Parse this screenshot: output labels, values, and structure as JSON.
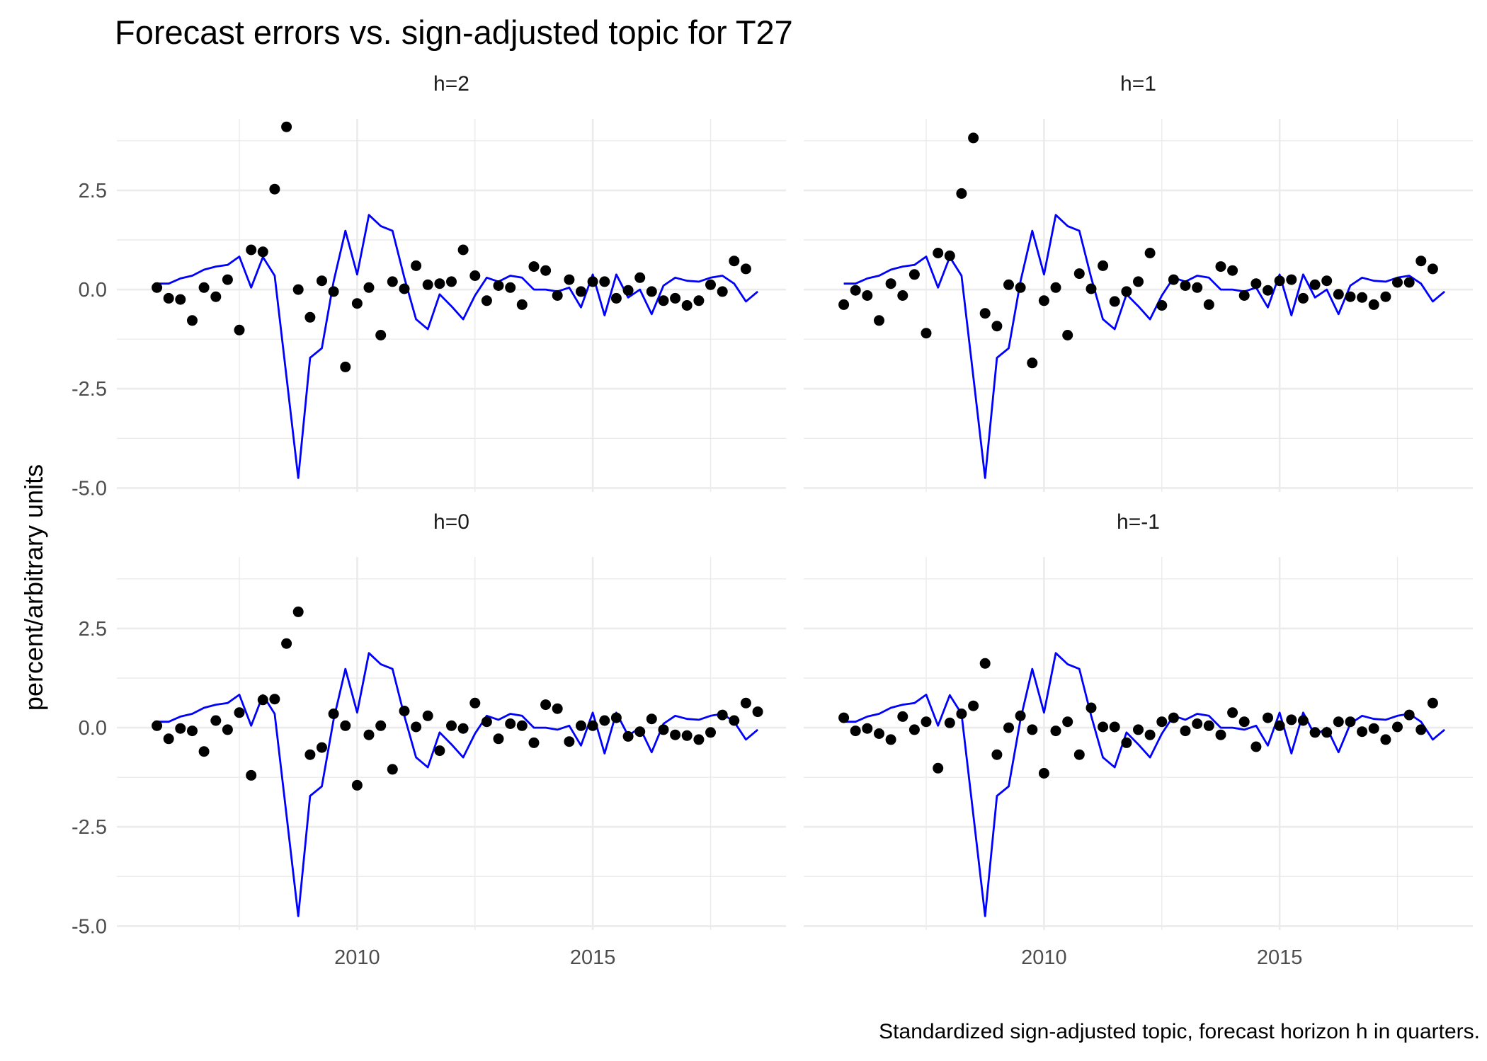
{
  "chart_data": {
    "type": "line+scatter",
    "title": "Forecast errors vs. sign-adjusted topic for T27",
    "ylabel": "percent/arbitrary units",
    "caption": "Standardized sign-adjusted topic, forecast horizon h in quarters.",
    "xlim": [
      2004.9,
      2019.1
    ],
    "ylim": [
      -5.1,
      4.3
    ],
    "x_ticks": [
      2010,
      2015
    ],
    "x_tick_labels": [
      "2010",
      "2015"
    ],
    "y_ticks": [
      -5,
      -2.5,
      0,
      2.5
    ],
    "y_tick_labels": [
      "-5.0",
      "-2.5",
      "0.0",
      "2.5"
    ],
    "grid": true,
    "colors": {
      "line": "#0000ff",
      "points": "#000000",
      "grid": "#ebebeb"
    },
    "x": [
      2005.75,
      2006.0,
      2006.25,
      2006.5,
      2006.75,
      2007.0,
      2007.25,
      2007.5,
      2007.75,
      2008.0,
      2008.25,
      2008.5,
      2008.75,
      2009.0,
      2009.25,
      2009.5,
      2009.75,
      2010.0,
      2010.25,
      2010.5,
      2010.75,
      2011.0,
      2011.25,
      2011.5,
      2011.75,
      2012.0,
      2012.25,
      2012.5,
      2012.75,
      2013.0,
      2013.25,
      2013.5,
      2013.75,
      2014.0,
      2014.25,
      2014.5,
      2014.75,
      2015.0,
      2015.25,
      2015.5,
      2015.75,
      2016.0,
      2016.25,
      2016.5,
      2016.75,
      2017.0,
      2017.25,
      2017.5,
      2017.75,
      2018.0,
      2018.25,
      2018.5,
      2018.75
    ],
    "topic": [
      0.15,
      0.15,
      0.28,
      0.35,
      0.5,
      0.58,
      0.62,
      0.83,
      0.05,
      0.82,
      0.35,
      -2.2,
      -4.75,
      -1.72,
      -1.48,
      0.2,
      1.48,
      0.38,
      1.88,
      1.6,
      1.48,
      0.3,
      -0.75,
      -1.0,
      -0.12,
      -0.42,
      -0.75,
      -0.15,
      0.3,
      0.2,
      0.35,
      0.3,
      0.0,
      0.0,
      -0.05,
      0.05,
      -0.45,
      0.38,
      -0.65,
      0.38,
      -0.2,
      0.0,
      -0.62,
      0.1,
      0.3,
      0.22,
      0.2,
      0.3,
      0.35,
      0.15,
      -0.3,
      -0.05,
      null
    ],
    "panels": [
      {
        "label": "h=2",
        "values": [
          0.05,
          -0.22,
          -0.25,
          -0.78,
          0.05,
          -0.18,
          0.25,
          -1.02,
          1.0,
          0.95,
          2.53,
          4.1,
          0.0,
          -0.7,
          0.22,
          -0.05,
          -1.95,
          -0.35,
          0.05,
          -1.15,
          0.2,
          0.02,
          0.6,
          0.12,
          0.15,
          0.2,
          1.0,
          0.35,
          -0.28,
          0.1,
          0.05,
          -0.38,
          0.58,
          0.48,
          -0.15,
          0.25,
          -0.05,
          0.2,
          0.2,
          -0.22,
          -0.02,
          0.3,
          -0.05,
          -0.28,
          -0.22,
          -0.4,
          -0.28,
          0.12,
          -0.05,
          0.72,
          0.52,
          null,
          null
        ]
      },
      {
        "label": "h=1",
        "values": [
          -0.38,
          -0.02,
          -0.15,
          -0.78,
          0.15,
          -0.15,
          0.38,
          -1.1,
          0.92,
          0.85,
          2.42,
          3.82,
          -0.6,
          -0.92,
          0.12,
          0.05,
          -1.85,
          -0.28,
          0.05,
          -1.15,
          0.4,
          0.02,
          0.6,
          -0.3,
          -0.05,
          0.2,
          0.92,
          -0.4,
          0.25,
          0.1,
          0.05,
          -0.38,
          0.58,
          0.48,
          -0.15,
          0.15,
          -0.02,
          0.22,
          0.25,
          -0.22,
          0.12,
          0.22,
          -0.12,
          -0.18,
          -0.2,
          -0.38,
          -0.18,
          0.18,
          0.18,
          0.72,
          0.52,
          null,
          null
        ]
      },
      {
        "label": "h=0",
        "values": [
          0.05,
          -0.28,
          -0.02,
          -0.08,
          -0.6,
          0.18,
          -0.05,
          0.38,
          -1.2,
          0.7,
          0.72,
          2.12,
          2.92,
          -0.68,
          -0.5,
          0.35,
          0.05,
          -1.45,
          -0.18,
          0.05,
          -1.05,
          0.42,
          0.02,
          0.3,
          -0.58,
          0.05,
          -0.02,
          0.62,
          0.15,
          -0.28,
          0.1,
          0.05,
          -0.38,
          0.58,
          0.48,
          -0.35,
          0.05,
          0.05,
          0.18,
          0.25,
          -0.22,
          -0.1,
          0.22,
          -0.05,
          -0.18,
          -0.2,
          -0.3,
          -0.12,
          0.32,
          0.18,
          0.62,
          0.4,
          null
        ]
      },
      {
        "label": "h=-1",
        "values": [
          0.25,
          -0.08,
          -0.02,
          -0.15,
          -0.3,
          0.28,
          -0.05,
          0.15,
          -1.02,
          0.12,
          0.35,
          0.55,
          1.62,
          -0.68,
          0.0,
          0.3,
          -0.05,
          -1.15,
          -0.08,
          0.15,
          -0.68,
          0.5,
          0.02,
          0.02,
          -0.38,
          -0.05,
          -0.18,
          0.15,
          0.25,
          -0.08,
          0.1,
          0.05,
          -0.18,
          0.38,
          0.15,
          -0.48,
          0.25,
          0.05,
          0.2,
          0.18,
          -0.12,
          -0.12,
          0.15,
          0.15,
          -0.1,
          -0.02,
          -0.3,
          0.02,
          0.32,
          -0.05,
          0.62,
          null,
          null
        ]
      }
    ]
  }
}
